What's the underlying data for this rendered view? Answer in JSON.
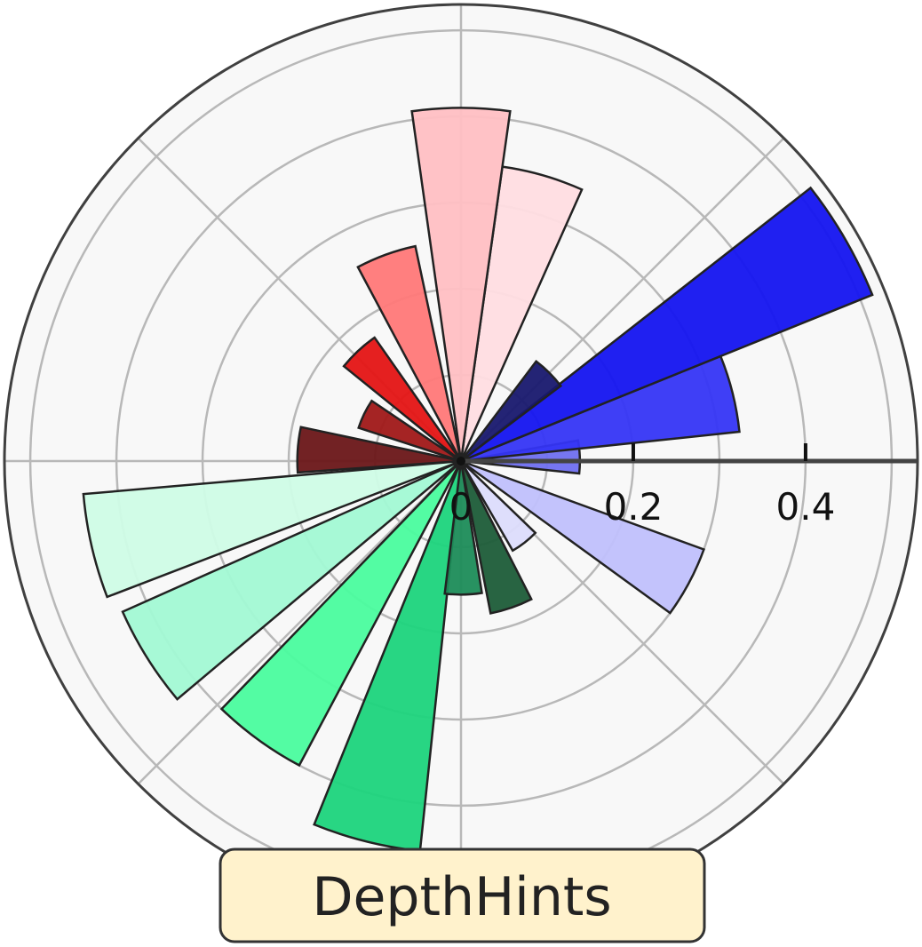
{
  "chart_data": {
    "type": "polar-bar",
    "title": "DepthHints",
    "r_ticks": [
      0,
      0.2,
      0.4
    ],
    "r_tick_labels": [
      "0",
      "0.2",
      "0.4"
    ],
    "rlim": [
      0,
      0.53
    ],
    "grid": true,
    "theta_grid_deg": [
      0,
      45,
      90,
      135,
      180,
      225,
      270,
      315
    ],
    "bars": [
      {
        "theta_deg": 2,
        "value": 0.138,
        "color": "#6f6ff0"
      },
      {
        "theta_deg": 14,
        "value": 0.325,
        "color": "#3535f5"
      },
      {
        "theta_deg": 30,
        "value": 0.515,
        "color": "#1414f0"
      },
      {
        "theta_deg": 45,
        "value": 0.145,
        "color": "#18186e"
      },
      {
        "theta_deg": 74,
        "value": 0.345,
        "color": "#ffdde1"
      },
      {
        "theta_deg": 90,
        "value": 0.41,
        "color": "#ffbfc3"
      },
      {
        "theta_deg": 110,
        "value": 0.255,
        "color": "#ff7878"
      },
      {
        "theta_deg": 133,
        "value": 0.175,
        "color": "#e41414"
      },
      {
        "theta_deg": 154,
        "value": 0.125,
        "color": "#a01818"
      },
      {
        "theta_deg": 176,
        "value": 0.19,
        "color": "#6a1618"
      },
      {
        "theta_deg": 193,
        "value": 0.44,
        "color": "#cffce6"
      },
      {
        "theta_deg": 212,
        "value": 0.43,
        "color": "#a2f9d4"
      },
      {
        "theta_deg": 234,
        "value": 0.4,
        "color": "#4afc9e"
      },
      {
        "theta_deg": 256,
        "value": 0.455,
        "color": "#1cd47c"
      },
      {
        "theta_deg": 271,
        "value": 0.155,
        "color": "#1c8c58"
      },
      {
        "theta_deg": 289,
        "value": 0.18,
        "color": "#1c5c38"
      },
      {
        "theta_deg": 308,
        "value": 0.12,
        "color": "#dcdcfc"
      },
      {
        "theta_deg": 332,
        "value": 0.3,
        "color": "#c0c0fc"
      }
    ]
  },
  "colors": {
    "plot_background": "#f8f8f8",
    "grid": "#b8b8b8",
    "outline": "#404040",
    "title_box_fill": "#fff2cc",
    "title_box_stroke": "#333333"
  }
}
